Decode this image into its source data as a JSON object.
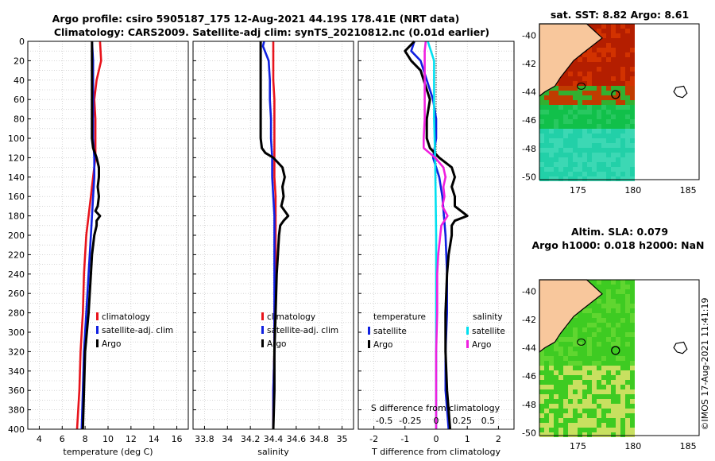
{
  "header": {
    "title_line1": "Argo profile: csiro 5905187_175 12-Aug-2021 44.19S 178.41E (NRT data)",
    "title_line2": "Climatology: CARS2009. Satellite-adj clim: synTS_20210812.nc (0.01d earlier)"
  },
  "copyright": "©IMOS 17-Aug-2021 11:41:19",
  "chart_data": [
    {
      "type": "line",
      "name": "temperature",
      "xlabel": "temperature (deg C)",
      "ylabel": "",
      "xlim": [
        3,
        17
      ],
      "ylim": [
        400,
        0
      ],
      "x_ticks": [
        "4",
        "6",
        "8",
        "10",
        "12",
        "14",
        "16"
      ],
      "y_ticks": [
        "0",
        "20",
        "40",
        "60",
        "80",
        "100",
        "120",
        "140",
        "160",
        "180",
        "200",
        "220",
        "240",
        "260",
        "280",
        "300",
        "320",
        "340",
        "360",
        "380",
        "400"
      ],
      "grid": true,
      "legend": [
        "climatology",
        "satellite-adj. clim",
        "Argo"
      ],
      "series": [
        {
          "name": "climatology",
          "color": "#e8141c",
          "depth": [
            0,
            20,
            40,
            60,
            80,
            100,
            120,
            140,
            160,
            180,
            200,
            240,
            280,
            320,
            360,
            400
          ],
          "values": [
            9.3,
            9.4,
            9.0,
            8.8,
            8.9,
            8.9,
            8.9,
            8.7,
            8.5,
            8.3,
            8.1,
            7.9,
            7.8,
            7.6,
            7.5,
            7.3
          ]
        },
        {
          "name": "satellite-adj. clim",
          "color": "#1020e0",
          "depth": [
            0,
            20,
            40,
            60,
            80,
            100,
            120,
            140,
            160,
            180,
            200,
            240,
            280,
            320,
            360,
            400
          ],
          "values": [
            8.6,
            8.7,
            8.7,
            8.7,
            8.7,
            8.7,
            8.8,
            8.8,
            8.7,
            8.6,
            8.5,
            8.3,
            8.1,
            7.9,
            7.8,
            7.7
          ]
        },
        {
          "name": "Argo",
          "color": "#000000",
          "depth": [
            0,
            20,
            40,
            60,
            80,
            100,
            110,
            120,
            130,
            140,
            150,
            160,
            170,
            175,
            180,
            185,
            190,
            200,
            220,
            240,
            280,
            320,
            360,
            400
          ],
          "values": [
            8.6,
            8.6,
            8.6,
            8.6,
            8.6,
            8.6,
            8.7,
            9.0,
            9.2,
            9.2,
            9.1,
            9.2,
            9.1,
            8.9,
            9.3,
            9.0,
            9.0,
            8.8,
            8.6,
            8.5,
            8.3,
            8.0,
            7.9,
            7.8
          ]
        }
      ]
    },
    {
      "type": "line",
      "name": "salinity",
      "xlabel": "salinity",
      "xlim": [
        33.7,
        35.1
      ],
      "ylim": [
        400,
        0
      ],
      "x_ticks": [
        "33.8",
        "34",
        "34.2",
        "34.4",
        "34.6",
        "34.8",
        "35"
      ],
      "grid": true,
      "legend": [
        "climatology",
        "satellite-adj. clim",
        "Argo"
      ],
      "series": [
        {
          "name": "climatology",
          "color": "#e8141c",
          "depth": [
            0,
            20,
            40,
            60,
            80,
            100,
            120,
            140,
            160,
            180,
            200,
            240,
            280,
            320,
            360,
            400
          ],
          "values": [
            34.4,
            34.4,
            34.4,
            34.41,
            34.41,
            34.41,
            34.41,
            34.41,
            34.42,
            34.42,
            34.42,
            34.42,
            34.41,
            34.41,
            34.4,
            34.4
          ]
        },
        {
          "name": "satellite-adj. clim",
          "color": "#1020e0",
          "depth": [
            0,
            5,
            20,
            40,
            60,
            80,
            100,
            120,
            140,
            160,
            180,
            200,
            240,
            280,
            320,
            360,
            400
          ],
          "values": [
            34.32,
            34.31,
            34.36,
            34.37,
            34.37,
            34.38,
            34.38,
            34.39,
            34.39,
            34.4,
            34.41,
            34.41,
            34.41,
            34.41,
            34.41,
            34.4,
            34.4
          ]
        },
        {
          "name": "Argo",
          "color": "#000000",
          "depth": [
            0,
            40,
            80,
            100,
            110,
            115,
            120,
            130,
            140,
            150,
            160,
            170,
            180,
            185,
            190,
            200,
            220,
            240,
            280,
            320,
            360,
            400
          ],
          "values": [
            34.29,
            34.29,
            34.29,
            34.29,
            34.3,
            34.33,
            34.4,
            34.48,
            34.5,
            34.48,
            34.49,
            34.47,
            34.53,
            34.49,
            34.46,
            34.45,
            34.44,
            34.43,
            34.42,
            34.41,
            34.41,
            34.4
          ]
        }
      ]
    },
    {
      "type": "line",
      "name": "differences",
      "xlabel": "T difference from climatology",
      "xlabel_top": "S difference from climatology",
      "xlim": [
        -2.5,
        2.5
      ],
      "xlim_salinity": [
        -0.75,
        0.75
      ],
      "ylim": [
        400,
        0
      ],
      "x_ticks": [
        "-2",
        "-1",
        "0",
        "1",
        "2"
      ],
      "x_ticks_salinity": [
        "-0.5",
        "-0.25",
        "0",
        "0.25",
        "0.5"
      ],
      "grid": true,
      "legend_left_title": "temperature",
      "legend_right_title": "salinity",
      "legend": [
        "satellite",
        "Argo",
        "satellite",
        "Argo"
      ],
      "series": [
        {
          "name": "temperature satellite",
          "color": "#1020e0",
          "depth": [
            0,
            10,
            20,
            40,
            60,
            80,
            100,
            120,
            140,
            160,
            200,
            240,
            280,
            320,
            360,
            400
          ],
          "values": [
            -0.7,
            -0.8,
            -0.5,
            -0.3,
            -0.1,
            0.0,
            0.0,
            -0.1,
            0.1,
            0.2,
            0.3,
            0.35,
            0.35,
            0.3,
            0.3,
            0.4
          ]
        },
        {
          "name": "temperature Argo",
          "color": "#000000",
          "depth": [
            0,
            10,
            20,
            30,
            40,
            60,
            80,
            100,
            110,
            120,
            130,
            140,
            150,
            160,
            170,
            180,
            185,
            190,
            200,
            220,
            240,
            280,
            320,
            360,
            400
          ],
          "values": [
            -0.7,
            -1.0,
            -0.8,
            -0.5,
            -0.4,
            -0.2,
            -0.3,
            -0.3,
            -0.2,
            0.1,
            0.5,
            0.6,
            0.5,
            0.6,
            0.6,
            1.0,
            0.6,
            0.5,
            0.5,
            0.4,
            0.35,
            0.3,
            0.3,
            0.35,
            0.45
          ]
        },
        {
          "name": "salinity satellite",
          "color": "#00e0f0",
          "depth": [
            0,
            20,
            40,
            80,
            120,
            200,
            280,
            360,
            400
          ],
          "values": [
            -0.08,
            -0.02,
            -0.02,
            -0.02,
            -0.01,
            0.0,
            0.0,
            0.0,
            0.0
          ]
        },
        {
          "name": "salinity Argo",
          "color": "#f020e0",
          "depth": [
            0,
            10,
            20,
            40,
            60,
            80,
            100,
            110,
            120,
            130,
            140,
            150,
            160,
            170,
            180,
            190,
            200,
            220,
            240,
            280,
            320,
            360,
            400
          ],
          "values": [
            -0.1,
            -0.11,
            -0.11,
            -0.11,
            -0.11,
            -0.11,
            -0.12,
            -0.12,
            -0.01,
            0.07,
            0.09,
            0.07,
            0.08,
            0.06,
            0.11,
            0.05,
            0.04,
            0.02,
            0.01,
            0.01,
            0.0,
            0.0,
            0.0
          ]
        }
      ]
    },
    {
      "type": "heatmap",
      "name": "sst map",
      "title": "sat. SST: 8.82 Argo: 8.61",
      "x_ticks": [
        "175",
        "180",
        "185"
      ],
      "y_ticks": [
        "-40",
        "-42",
        "-44",
        "-46",
        "-48",
        "-50"
      ],
      "colors": {
        "land": "#f8c79c",
        "warm": "#b41e00",
        "cool": "#11c04a",
        "cold": "#22d0a8"
      }
    },
    {
      "type": "heatmap",
      "name": "sla map",
      "title_line1": "Altim. SLA: 0.079",
      "title_line2": "Argo h1000: 0.018 h2000: NaN",
      "x_ticks": [
        "175",
        "180",
        "185"
      ],
      "y_ticks": [
        "-40",
        "-42",
        "-44",
        "-46",
        "-48",
        "-50"
      ],
      "colors": {
        "land": "#f8c79c",
        "green": "#3ecb22",
        "yellow": "#c8e060"
      }
    }
  ]
}
